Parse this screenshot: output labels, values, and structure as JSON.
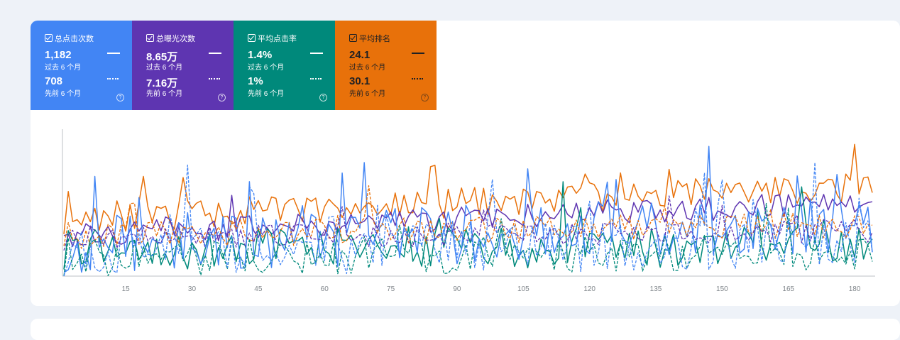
{
  "metrics": [
    {
      "label": "总点击次数",
      "value_current": "1,182",
      "period_current": "过去 6 个月",
      "value_previous": "708",
      "period_previous": "先前 6 个月",
      "color": "#4285f4",
      "text": "light",
      "help": "?"
    },
    {
      "label": "总曝光次数",
      "value_current": "8.65万",
      "period_current": "过去 6 个月",
      "value_previous": "7.16万",
      "period_previous": "先前 6 个月",
      "color": "#5e35b1",
      "text": "light",
      "help": "?"
    },
    {
      "label": "平均点击率",
      "value_current": "1.4%",
      "period_current": "过去 6 个月",
      "value_previous": "1%",
      "period_previous": "先前 6 个月",
      "color": "#00897b",
      "text": "light",
      "help": "?"
    },
    {
      "label": "平均排名",
      "value_current": "24.1",
      "period_current": "过去 6 个月",
      "value_previous": "30.1",
      "period_previous": "先前 6 个月",
      "color": "#e8710a",
      "text": "dark",
      "help": "?"
    }
  ],
  "chart_data": {
    "type": "line",
    "x_ticks": [
      15,
      30,
      45,
      60,
      75,
      90,
      105,
      120,
      135,
      150,
      165,
      180
    ],
    "xlim": [
      1,
      184
    ],
    "grid": false,
    "legend": "metric cards above chart",
    "series_colors": {
      "clicks": "#4285f4",
      "impressions": "#5e35b1",
      "ctr": "#00897b",
      "position": "#e8710a"
    },
    "series_styles": [
      "solid = 过去 6 个月",
      "dashed = 先前 6 个月"
    ]
  }
}
